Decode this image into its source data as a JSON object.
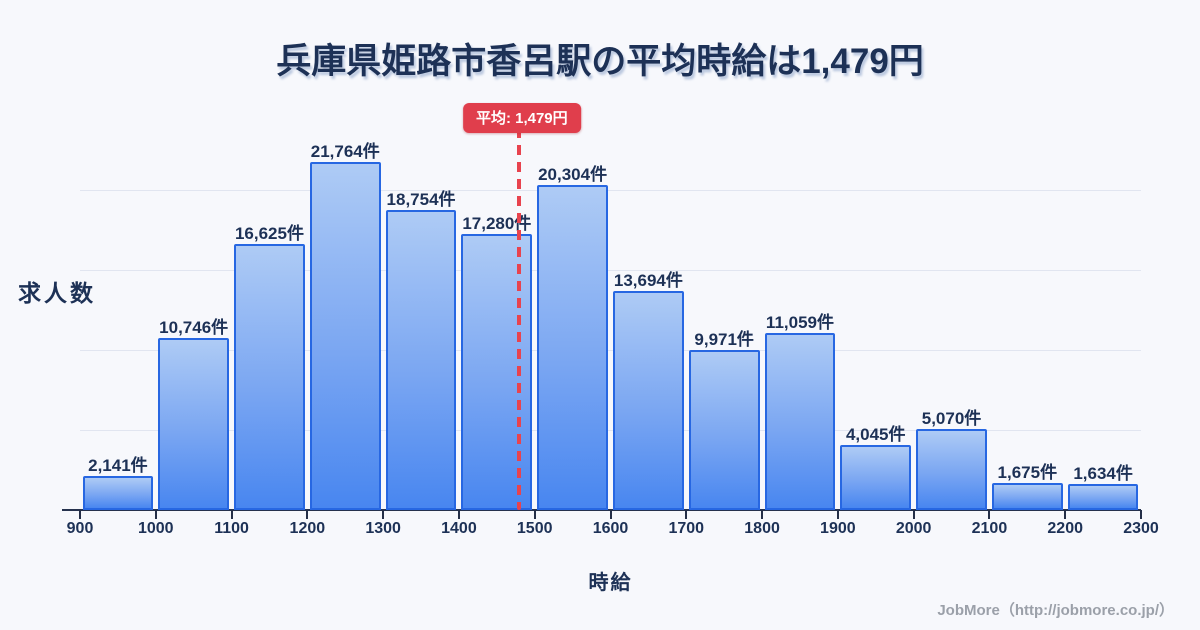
{
  "title": "兵庫県姫路市香呂駅の平均時給は1,479円",
  "axes": {
    "y_label": "求人数",
    "x_label": "時給"
  },
  "footer": {
    "credit": "JobMore（http://jobmore.co.jp/）"
  },
  "colors": {
    "background": "#f7f8fc",
    "text_navy": "#1d3156",
    "bar_border": "#2767e2",
    "bar_fill_top": "#aecbf5",
    "bar_fill_bottom": "#4886f0",
    "gridline": "#e1e5f0",
    "average_red": "#e03e4c",
    "footer_gray": "#9ba0a9"
  },
  "chart_data": {
    "type": "bar",
    "title": "兵庫県姫路市香呂駅の平均時給は1,479円",
    "xlabel": "時給",
    "ylabel": "求人数",
    "bin_edges": [
      900,
      1000,
      1100,
      1200,
      1300,
      1400,
      1500,
      1600,
      1700,
      1800,
      1900,
      2000,
      2100,
      2200,
      2300
    ],
    "x_tick_labels": [
      "900",
      "1000",
      "1100",
      "1200",
      "1300",
      "1400",
      "1500",
      "1600",
      "1700",
      "1800",
      "1900",
      "2000",
      "2100",
      "2200",
      "2300"
    ],
    "values": [
      2141,
      10746,
      16625,
      21764,
      18754,
      17280,
      20304,
      13694,
      9971,
      11059,
      4045,
      5070,
      1675,
      1634
    ],
    "value_labels": [
      "2,141件",
      "10,746件",
      "16,625件",
      "21,764件",
      "18,754件",
      "17,280件",
      "20,304件",
      "13,694件",
      "9,971件",
      "11,059件",
      "4,045件",
      "5,070件",
      "1,675件",
      "1,634件"
    ],
    "average_line": {
      "value": 1479,
      "label": "平均: 1,479円"
    },
    "ylim": [
      0,
      25000
    ],
    "gridline_values": [
      5000,
      10000,
      15000,
      20000
    ],
    "grid": "horizontal",
    "legend": "none"
  }
}
